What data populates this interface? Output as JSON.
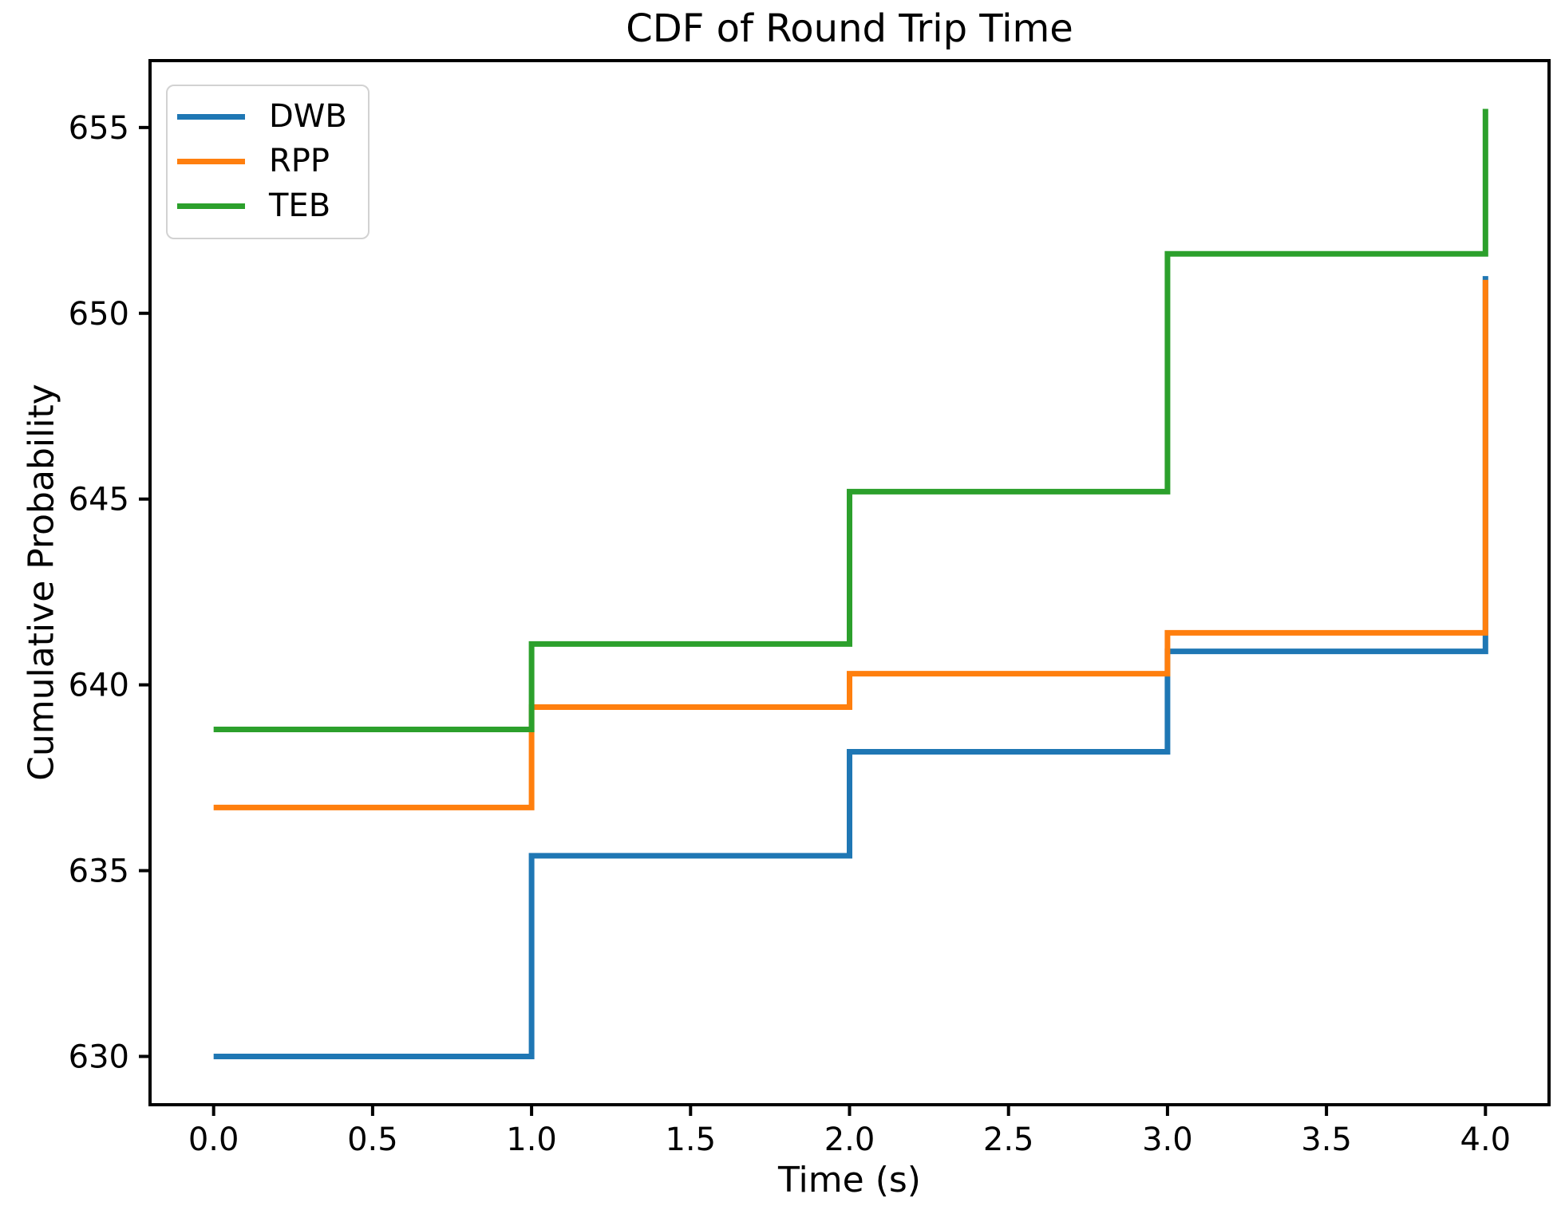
{
  "figure": {
    "title": "CDF of Round Trip Time",
    "xlabel": "Time (s)",
    "ylabel": "Cumulative Probability"
  },
  "legend": {
    "position": "upper left",
    "entries": [
      {
        "label": "DWB",
        "color": "#1f77b4"
      },
      {
        "label": "RPP",
        "color": "#ff7f0e"
      },
      {
        "label": "TEB",
        "color": "#2ca02c"
      }
    ]
  },
  "chart_data": {
    "type": "line",
    "subtype": "step-post",
    "title": "CDF of Round Trip Time",
    "xlabel": "Time (s)",
    "ylabel": "Cumulative Probability",
    "xlim": [
      -0.2,
      4.2
    ],
    "ylim": [
      628.7,
      656.8
    ],
    "xtick_labels": [
      "0.0",
      "0.5",
      "1.0",
      "1.5",
      "2.0",
      "2.5",
      "3.0",
      "3.5",
      "4.0"
    ],
    "ytick_labels": [
      "630",
      "635",
      "640",
      "645",
      "650",
      "655"
    ],
    "grid": false,
    "legend_position": "upper left",
    "step_x": [
      0,
      1,
      2,
      3,
      4
    ],
    "series": [
      {
        "name": "DWB",
        "color": "#1f77b4",
        "plateaus": [
          630.0,
          635.4,
          638.2,
          640.9
        ],
        "end_value": 651.0
      },
      {
        "name": "RPP",
        "color": "#ff7f0e",
        "plateaus": [
          636.7,
          639.4,
          640.3,
          641.4
        ],
        "end_value": 650.9
      },
      {
        "name": "TEB",
        "color": "#2ca02c",
        "plateaus": [
          638.8,
          641.1,
          645.2,
          651.6
        ],
        "end_value": 655.5
      }
    ]
  },
  "style": {
    "line_width": 7,
    "spine_color": "#000000",
    "tick_color": "#000000",
    "tick_label_size": 40,
    "legend_border_color": "#d2d2d2"
  }
}
